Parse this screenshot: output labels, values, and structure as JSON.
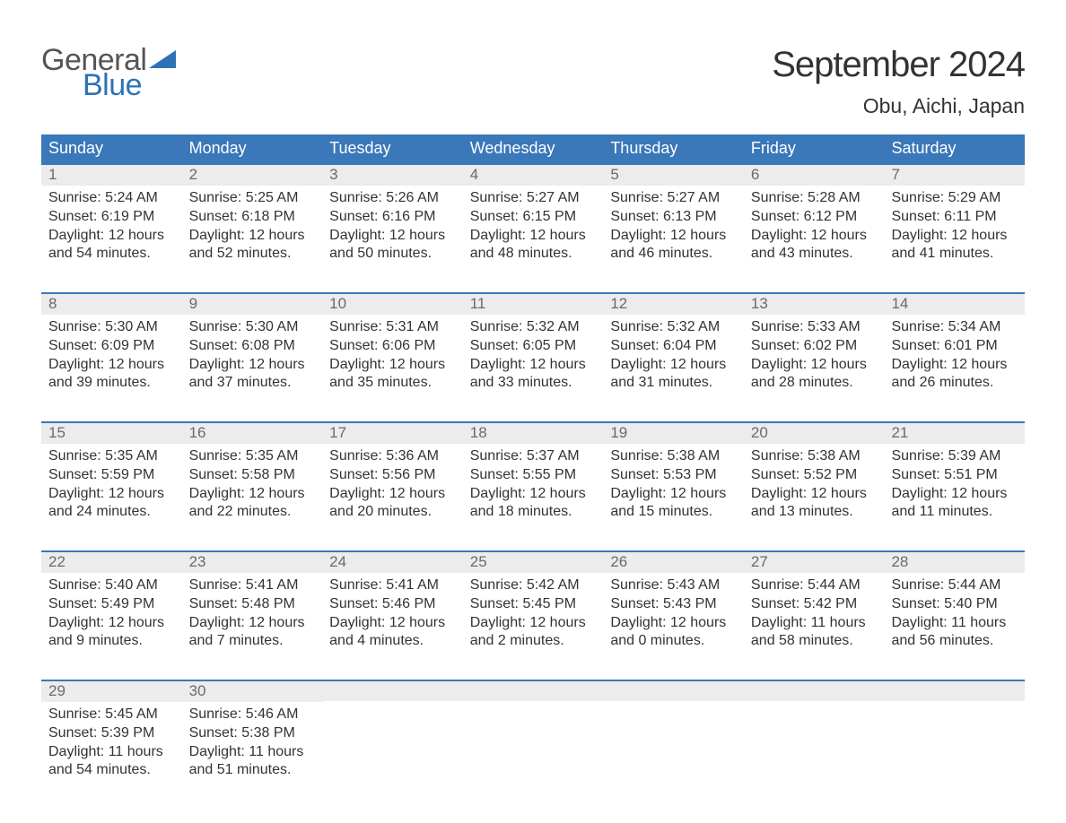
{
  "brand": {
    "word1": "General",
    "word2": "Blue",
    "flag_color": "#2e72b6",
    "word1_color": "#555555",
    "word2_color": "#2e72b6"
  },
  "title": "September 2024",
  "location": "Obu, Aichi, Japan",
  "colors": {
    "header_bg": "#3a78ba",
    "header_text": "#ffffff",
    "week_divider": "#3a78ba",
    "daynum_bg": "#ececec",
    "daynum_color": "#6a6a6a",
    "body_text": "#333333",
    "page_bg": "#ffffff"
  },
  "typography": {
    "title_fontsize": 40,
    "location_fontsize": 23,
    "weekday_fontsize": 18,
    "daynum_fontsize": 17,
    "body_fontsize": 16,
    "font_family": "Arial"
  },
  "weekdays": [
    "Sunday",
    "Monday",
    "Tuesday",
    "Wednesday",
    "Thursday",
    "Friday",
    "Saturday"
  ],
  "weeks": [
    [
      {
        "n": "1",
        "sunrise": "Sunrise: 5:24 AM",
        "sunset": "Sunset: 6:19 PM",
        "dl1": "Daylight: 12 hours",
        "dl2": "and 54 minutes."
      },
      {
        "n": "2",
        "sunrise": "Sunrise: 5:25 AM",
        "sunset": "Sunset: 6:18 PM",
        "dl1": "Daylight: 12 hours",
        "dl2": "and 52 minutes."
      },
      {
        "n": "3",
        "sunrise": "Sunrise: 5:26 AM",
        "sunset": "Sunset: 6:16 PM",
        "dl1": "Daylight: 12 hours",
        "dl2": "and 50 minutes."
      },
      {
        "n": "4",
        "sunrise": "Sunrise: 5:27 AM",
        "sunset": "Sunset: 6:15 PM",
        "dl1": "Daylight: 12 hours",
        "dl2": "and 48 minutes."
      },
      {
        "n": "5",
        "sunrise": "Sunrise: 5:27 AM",
        "sunset": "Sunset: 6:13 PM",
        "dl1": "Daylight: 12 hours",
        "dl2": "and 46 minutes."
      },
      {
        "n": "6",
        "sunrise": "Sunrise: 5:28 AM",
        "sunset": "Sunset: 6:12 PM",
        "dl1": "Daylight: 12 hours",
        "dl2": "and 43 minutes."
      },
      {
        "n": "7",
        "sunrise": "Sunrise: 5:29 AM",
        "sunset": "Sunset: 6:11 PM",
        "dl1": "Daylight: 12 hours",
        "dl2": "and 41 minutes."
      }
    ],
    [
      {
        "n": "8",
        "sunrise": "Sunrise: 5:30 AM",
        "sunset": "Sunset: 6:09 PM",
        "dl1": "Daylight: 12 hours",
        "dl2": "and 39 minutes."
      },
      {
        "n": "9",
        "sunrise": "Sunrise: 5:30 AM",
        "sunset": "Sunset: 6:08 PM",
        "dl1": "Daylight: 12 hours",
        "dl2": "and 37 minutes."
      },
      {
        "n": "10",
        "sunrise": "Sunrise: 5:31 AM",
        "sunset": "Sunset: 6:06 PM",
        "dl1": "Daylight: 12 hours",
        "dl2": "and 35 minutes."
      },
      {
        "n": "11",
        "sunrise": "Sunrise: 5:32 AM",
        "sunset": "Sunset: 6:05 PM",
        "dl1": "Daylight: 12 hours",
        "dl2": "and 33 minutes."
      },
      {
        "n": "12",
        "sunrise": "Sunrise: 5:32 AM",
        "sunset": "Sunset: 6:04 PM",
        "dl1": "Daylight: 12 hours",
        "dl2": "and 31 minutes."
      },
      {
        "n": "13",
        "sunrise": "Sunrise: 5:33 AM",
        "sunset": "Sunset: 6:02 PM",
        "dl1": "Daylight: 12 hours",
        "dl2": "and 28 minutes."
      },
      {
        "n": "14",
        "sunrise": "Sunrise: 5:34 AM",
        "sunset": "Sunset: 6:01 PM",
        "dl1": "Daylight: 12 hours",
        "dl2": "and 26 minutes."
      }
    ],
    [
      {
        "n": "15",
        "sunrise": "Sunrise: 5:35 AM",
        "sunset": "Sunset: 5:59 PM",
        "dl1": "Daylight: 12 hours",
        "dl2": "and 24 minutes."
      },
      {
        "n": "16",
        "sunrise": "Sunrise: 5:35 AM",
        "sunset": "Sunset: 5:58 PM",
        "dl1": "Daylight: 12 hours",
        "dl2": "and 22 minutes."
      },
      {
        "n": "17",
        "sunrise": "Sunrise: 5:36 AM",
        "sunset": "Sunset: 5:56 PM",
        "dl1": "Daylight: 12 hours",
        "dl2": "and 20 minutes."
      },
      {
        "n": "18",
        "sunrise": "Sunrise: 5:37 AM",
        "sunset": "Sunset: 5:55 PM",
        "dl1": "Daylight: 12 hours",
        "dl2": "and 18 minutes."
      },
      {
        "n": "19",
        "sunrise": "Sunrise: 5:38 AM",
        "sunset": "Sunset: 5:53 PM",
        "dl1": "Daylight: 12 hours",
        "dl2": "and 15 minutes."
      },
      {
        "n": "20",
        "sunrise": "Sunrise: 5:38 AM",
        "sunset": "Sunset: 5:52 PM",
        "dl1": "Daylight: 12 hours",
        "dl2": "and 13 minutes."
      },
      {
        "n": "21",
        "sunrise": "Sunrise: 5:39 AM",
        "sunset": "Sunset: 5:51 PM",
        "dl1": "Daylight: 12 hours",
        "dl2": "and 11 minutes."
      }
    ],
    [
      {
        "n": "22",
        "sunrise": "Sunrise: 5:40 AM",
        "sunset": "Sunset: 5:49 PM",
        "dl1": "Daylight: 12 hours",
        "dl2": "and 9 minutes."
      },
      {
        "n": "23",
        "sunrise": "Sunrise: 5:41 AM",
        "sunset": "Sunset: 5:48 PM",
        "dl1": "Daylight: 12 hours",
        "dl2": "and 7 minutes."
      },
      {
        "n": "24",
        "sunrise": "Sunrise: 5:41 AM",
        "sunset": "Sunset: 5:46 PM",
        "dl1": "Daylight: 12 hours",
        "dl2": "and 4 minutes."
      },
      {
        "n": "25",
        "sunrise": "Sunrise: 5:42 AM",
        "sunset": "Sunset: 5:45 PM",
        "dl1": "Daylight: 12 hours",
        "dl2": "and 2 minutes."
      },
      {
        "n": "26",
        "sunrise": "Sunrise: 5:43 AM",
        "sunset": "Sunset: 5:43 PM",
        "dl1": "Daylight: 12 hours",
        "dl2": "and 0 minutes."
      },
      {
        "n": "27",
        "sunrise": "Sunrise: 5:44 AM",
        "sunset": "Sunset: 5:42 PM",
        "dl1": "Daylight: 11 hours",
        "dl2": "and 58 minutes."
      },
      {
        "n": "28",
        "sunrise": "Sunrise: 5:44 AM",
        "sunset": "Sunset: 5:40 PM",
        "dl1": "Daylight: 11 hours",
        "dl2": "and 56 minutes."
      }
    ],
    [
      {
        "n": "29",
        "sunrise": "Sunrise: 5:45 AM",
        "sunset": "Sunset: 5:39 PM",
        "dl1": "Daylight: 11 hours",
        "dl2": "and 54 minutes."
      },
      {
        "n": "30",
        "sunrise": "Sunrise: 5:46 AM",
        "sunset": "Sunset: 5:38 PM",
        "dl1": "Daylight: 11 hours",
        "dl2": "and 51 minutes."
      },
      {
        "empty": true
      },
      {
        "empty": true
      },
      {
        "empty": true
      },
      {
        "empty": true
      },
      {
        "empty": true
      }
    ]
  ]
}
